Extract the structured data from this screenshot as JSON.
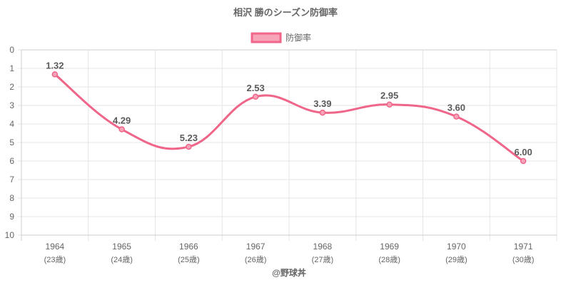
{
  "chart_data": {
    "type": "line",
    "title": "相沢 勝のシーズン防御率",
    "xlabel": "@野球丼",
    "ylabel": "",
    "categories": [
      "1964",
      "1965",
      "1966",
      "1967",
      "1968",
      "1969",
      "1970",
      "1971"
    ],
    "category_sublabels": [
      "(23歳)",
      "(24歳)",
      "(25歳)",
      "(26歳)",
      "(27歳)",
      "(28歳)",
      "(29歳)",
      "(30歳)"
    ],
    "series": [
      {
        "name": "防御率",
        "values": [
          1.32,
          4.29,
          5.23,
          2.53,
          3.39,
          2.95,
          3.6,
          6.0
        ]
      }
    ],
    "data_labels": [
      "1.32",
      "4.29",
      "5.23",
      "2.53",
      "3.39",
      "2.95",
      "3.60",
      "6.00"
    ],
    "yticks": [
      "0",
      "1",
      "2",
      "3",
      "4",
      "5",
      "6",
      "7",
      "8",
      "9",
      "10"
    ],
    "ylim": [
      0,
      10
    ],
    "y_reversed": true,
    "grid": true,
    "legend_position": "top",
    "colors": {
      "line": "#f0668a",
      "fill": "#f7a3b8",
      "grid": "#e5e5e5",
      "axis": "#cccccc",
      "text": "#666666"
    }
  }
}
